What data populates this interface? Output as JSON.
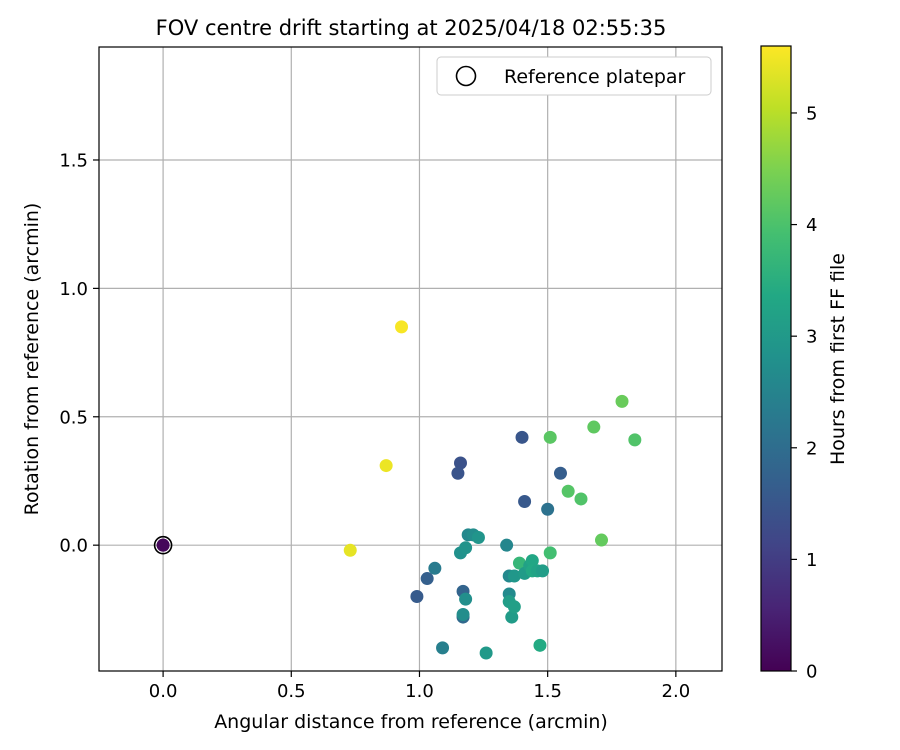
{
  "chart_data": {
    "type": "scatter",
    "title": "FOV centre drift starting at 2025/04/18 02:55:35",
    "xlabel": "Angular distance from reference (arcmin)",
    "ylabel": "Rotation from reference (arcmin)",
    "xlim": [
      -0.25,
      2.18
    ],
    "ylim": [
      -0.49,
      1.94
    ],
    "xticks": [
      0.0,
      0.5,
      1.0,
      1.5,
      2.0
    ],
    "xtick_labels": [
      "0.0",
      "0.5",
      "1.0",
      "1.5",
      "2.0"
    ],
    "yticks": [
      0.0,
      0.5,
      1.0,
      1.5
    ],
    "ytick_labels": [
      "0.0",
      "0.5",
      "1.0",
      "1.5"
    ],
    "grid": true,
    "legend": {
      "placement": "top-right",
      "entries": [
        "Reference platepar"
      ]
    },
    "reference_marker": {
      "x": 0.0,
      "y": 0.0,
      "label": "Reference platepar"
    },
    "colorbar": {
      "label": "Hours from first FF file",
      "min": 0,
      "max": 5.6,
      "ticks": [
        0,
        1,
        2,
        3,
        4,
        5
      ],
      "tick_labels": [
        "0",
        "1",
        "2",
        "3",
        "4",
        "5"
      ],
      "colormap": "viridis"
    },
    "points": [
      {
        "x": 0.0,
        "y": 0.0,
        "hours": 0.0
      },
      {
        "x": 0.0,
        "y": 0.0,
        "hours": 0.1
      },
      {
        "x": 0.93,
        "y": 0.85,
        "hours": 5.55
      },
      {
        "x": 0.87,
        "y": 0.31,
        "hours": 5.45
      },
      {
        "x": 0.73,
        "y": -0.02,
        "hours": 5.4
      },
      {
        "x": 1.16,
        "y": 0.32,
        "hours": 1.4
      },
      {
        "x": 1.15,
        "y": 0.28,
        "hours": 1.45
      },
      {
        "x": 1.4,
        "y": 0.42,
        "hours": 1.5
      },
      {
        "x": 1.41,
        "y": 0.17,
        "hours": 1.55
      },
      {
        "x": 1.55,
        "y": 0.28,
        "hours": 1.65
      },
      {
        "x": 1.5,
        "y": 0.14,
        "hours": 2.1
      },
      {
        "x": 0.99,
        "y": -0.2,
        "hours": 1.6
      },
      {
        "x": 1.03,
        "y": -0.13,
        "hours": 1.7
      },
      {
        "x": 1.06,
        "y": -0.09,
        "hours": 2.3
      },
      {
        "x": 1.09,
        "y": -0.4,
        "hours": 2.4
      },
      {
        "x": 1.17,
        "y": -0.18,
        "hours": 1.8
      },
      {
        "x": 1.17,
        "y": -0.28,
        "hours": 1.9
      },
      {
        "x": 1.17,
        "y": -0.27,
        "hours": 2.7
      },
      {
        "x": 1.18,
        "y": -0.21,
        "hours": 2.75
      },
      {
        "x": 1.16,
        "y": -0.03,
        "hours": 2.8
      },
      {
        "x": 1.18,
        "y": -0.01,
        "hours": 2.85
      },
      {
        "x": 1.19,
        "y": 0.04,
        "hours": 2.6
      },
      {
        "x": 1.21,
        "y": 0.04,
        "hours": 2.7
      },
      {
        "x": 1.23,
        "y": 0.03,
        "hours": 2.9
      },
      {
        "x": 1.26,
        "y": -0.42,
        "hours": 3.0
      },
      {
        "x": 1.34,
        "y": 0.0,
        "hours": 2.55
      },
      {
        "x": 1.35,
        "y": -0.12,
        "hours": 2.6
      },
      {
        "x": 1.35,
        "y": -0.19,
        "hours": 2.65
      },
      {
        "x": 1.35,
        "y": -0.22,
        "hours": 3.1
      },
      {
        "x": 1.37,
        "y": -0.12,
        "hours": 2.95
      },
      {
        "x": 1.36,
        "y": -0.28,
        "hours": 3.05
      },
      {
        "x": 1.37,
        "y": -0.24,
        "hours": 3.15
      },
      {
        "x": 1.39,
        "y": -0.07,
        "hours": 3.7
      },
      {
        "x": 1.41,
        "y": -0.11,
        "hours": 3.05
      },
      {
        "x": 1.43,
        "y": -0.08,
        "hours": 3.2
      },
      {
        "x": 1.44,
        "y": -0.06,
        "hours": 3.3
      },
      {
        "x": 1.44,
        "y": -0.1,
        "hours": 3.35
      },
      {
        "x": 1.46,
        "y": -0.1,
        "hours": 3.25
      },
      {
        "x": 1.48,
        "y": -0.1,
        "hours": 3.1
      },
      {
        "x": 1.47,
        "y": -0.39,
        "hours": 3.4
      },
      {
        "x": 1.51,
        "y": -0.03,
        "hours": 3.9
      },
      {
        "x": 1.51,
        "y": 0.42,
        "hours": 4.15
      },
      {
        "x": 1.58,
        "y": 0.21,
        "hours": 4.1
      },
      {
        "x": 1.63,
        "y": 0.18,
        "hours": 4.05
      },
      {
        "x": 1.68,
        "y": 0.46,
        "hours": 4.2
      },
      {
        "x": 1.71,
        "y": 0.02,
        "hours": 4.25
      },
      {
        "x": 1.79,
        "y": 0.56,
        "hours": 4.3
      },
      {
        "x": 1.84,
        "y": 0.41,
        "hours": 4.05
      }
    ]
  }
}
